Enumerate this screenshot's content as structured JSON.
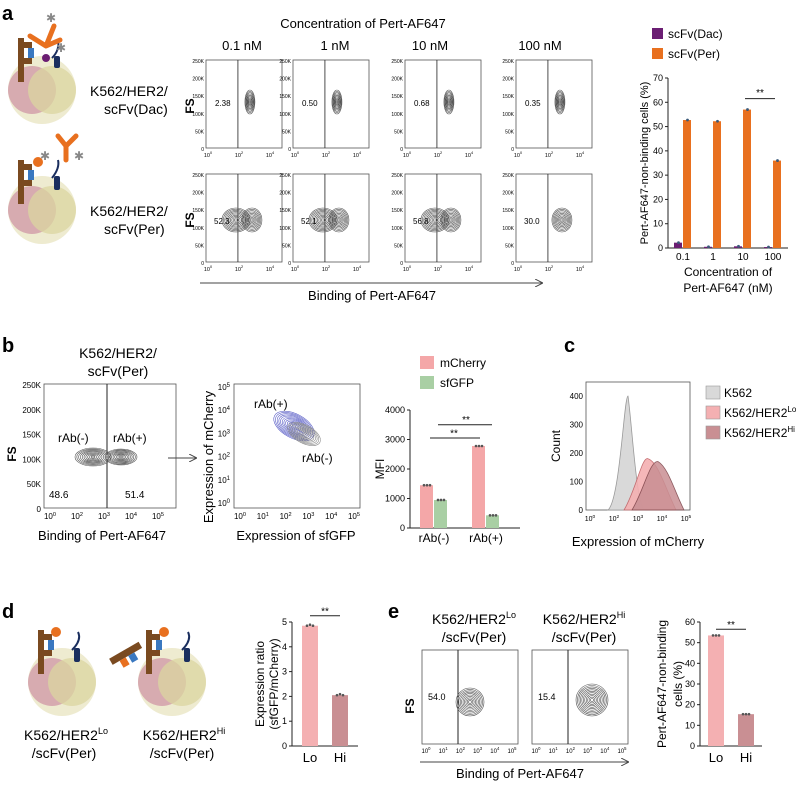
{
  "panels": {
    "a": {
      "letter": "a",
      "title": "Concentration of Pert-AF647",
      "concentrations": [
        "0.1 nM",
        "1 nM",
        "10 nM",
        "100 nM"
      ],
      "cell_labels": [
        [
          "K562/HER2/",
          "scFv(Dac)"
        ],
        [
          "K562/HER2/",
          "scFv(Per)"
        ]
      ],
      "fs_label": "FS",
      "x_axis_label": "Binding of Pert-AF647",
      "y_ticks": [
        "250K",
        "200K",
        "150K",
        "100K",
        "50K",
        "0"
      ],
      "x_ticks": [
        "0",
        "2",
        "4"
      ],
      "row_dac_percents": [
        "2.38",
        "0.50",
        "0.68",
        "0.35"
      ],
      "row_per_percents": [
        "52.3",
        "52.1",
        "56.8",
        "30.0"
      ]
    },
    "b": {
      "letter": "b",
      "gate_title": [
        "K562/HER2/",
        "scFv(Per)"
      ],
      "fs_label": "FS",
      "gate_labels": [
        "rAb(-)",
        "rAb(+)"
      ],
      "gate_percents": [
        "48.6",
        "51.4"
      ],
      "gate_x_label": "Binding of Pert-AF647",
      "gate_y_ticks": [
        "250K",
        "200K",
        "150K",
        "100K",
        "50K",
        "0"
      ],
      "scatter_y_label": "Expression of mCherry",
      "scatter_x_label": "Expression of sfGFP",
      "scatter_labels": [
        "rAb(+)",
        "rAb(-)"
      ],
      "sig": "**"
    },
    "c": {
      "letter": "c",
      "y_label": "Count",
      "x_label": "Expression of mCherry",
      "y_ticks": [
        "400",
        "300",
        "200",
        "100",
        "0"
      ]
    },
    "d": {
      "letter": "d",
      "cell_labels": [
        [
          "K562/HER2",
          "Lo",
          "/scFv(Per)"
        ],
        [
          "K562/HER2",
          "Hi",
          "/scFv(Per)"
        ]
      ],
      "sig": "**"
    },
    "e": {
      "letter": "e",
      "titles": [
        [
          "K562/HER2",
          "Lo",
          "/scFv(Per)"
        ],
        [
          "K562/HER2",
          "Hi",
          "/scFv(Per)"
        ]
      ],
      "fs_label": "FS",
      "x_label": "Binding of Pert-AF647",
      "percents": [
        "54.0",
        "15.4"
      ],
      "sig": "**"
    }
  },
  "colors": {
    "dac": "#6b1e73",
    "per": "#e8701f",
    "mcherry": "#f4a7a8",
    "sfgfp": "#a9cfa4",
    "k562": "#d9d9d9",
    "lo": "#f4b0b2",
    "hi": "#c98f93",
    "contour": "#555555",
    "scatter": "#5b5fc7"
  },
  "chart_data": [
    {
      "id": "a-bar",
      "type": "bar",
      "categories": [
        "0.1",
        "1",
        "10",
        "100"
      ],
      "series": [
        {
          "name": "scFv(Dac)",
          "values": [
            2.2,
            0.5,
            0.7,
            0.4
          ]
        },
        {
          "name": "scFv(Per)",
          "values": [
            52.7,
            52.2,
            57.0,
            36.0
          ]
        }
      ],
      "ylim": [
        0,
        70
      ],
      "yticks": [
        0,
        10,
        20,
        30,
        40,
        50,
        60,
        70
      ],
      "ylabel": "Pert-AF647-non-binding cells (%)",
      "xlabel": [
        "Concentration of",
        "Pert-AF647 (nM)"
      ],
      "annotation": "**"
    },
    {
      "id": "b-bar",
      "type": "bar",
      "categories": [
        "rAb(-)",
        "rAb(+)"
      ],
      "series": [
        {
          "name": "mCherry",
          "values": [
            1450,
            2780
          ]
        },
        {
          "name": "sfGFP",
          "values": [
            950,
            430
          ]
        }
      ],
      "ylim": [
        0,
        4000
      ],
      "yticks": [
        0,
        1000,
        2000,
        3000,
        4000
      ],
      "ylabel": "MFI",
      "annotation": "**"
    },
    {
      "id": "c-hist",
      "type": "area",
      "series": [
        {
          "name": "K562",
          "label_sup": ""
        },
        {
          "name": "K562/HER2",
          "label_sup": "Lo"
        },
        {
          "name": "K562/HER2",
          "label_sup": "Hi"
        }
      ],
      "ylim": [
        0,
        400
      ],
      "yticks": [
        0,
        100,
        200,
        300,
        400
      ],
      "ylabel": "Count",
      "xlabel": "Expression of mCherry"
    },
    {
      "id": "d-bar",
      "type": "bar",
      "categories": [
        "Lo",
        "Hi"
      ],
      "values": [
        4.85,
        2.05
      ],
      "ylim": [
        0,
        5
      ],
      "yticks": [
        0,
        1,
        2,
        3,
        4,
        5
      ],
      "ylabel": [
        "Expression ratio",
        "(sfGFP/mCherry)"
      ],
      "annotation": "**"
    },
    {
      "id": "e-bar",
      "type": "bar",
      "categories": [
        "Lo",
        "Hi"
      ],
      "values": [
        53.5,
        15.4
      ],
      "ylim": [
        0,
        60
      ],
      "yticks": [
        0,
        10,
        20,
        30,
        40,
        50,
        60
      ],
      "ylabel": [
        "Pert-AF647-non-binding",
        "cells (%)"
      ],
      "annotation": "**"
    }
  ]
}
